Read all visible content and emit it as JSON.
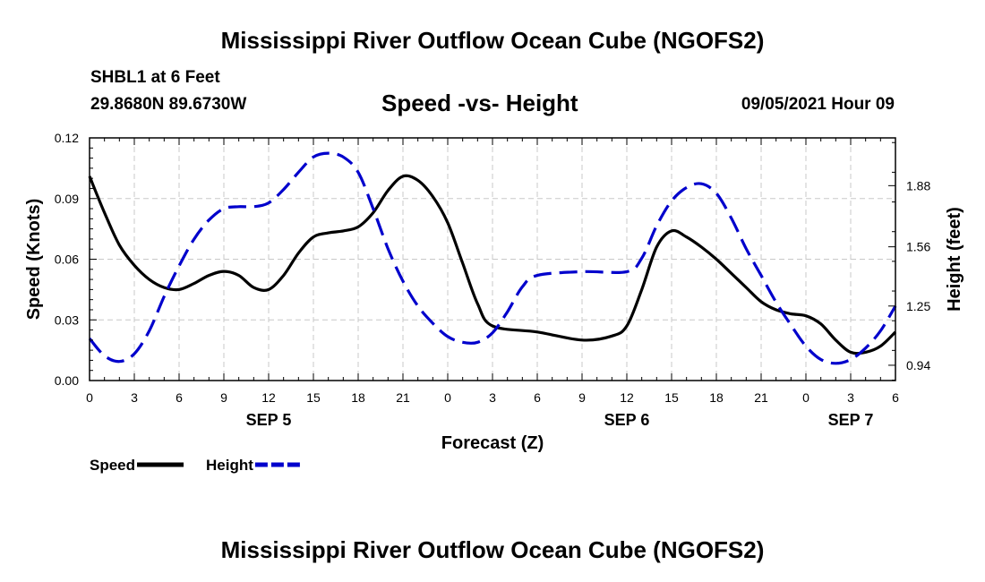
{
  "header": {
    "title": "Mississippi River Outflow Ocean Cube (NGOFS2)",
    "station": "SHBL1 at 6 Feet",
    "coordinates": "29.8680N  89.6730W",
    "datetime": "09/05/2021 Hour 09"
  },
  "footer": {
    "title": "Mississippi River Outflow Ocean Cube (NGOFS2)"
  },
  "chart_data": {
    "type": "line",
    "title": "Speed -vs- Height",
    "xlabel": "Forecast (Z)",
    "ylabel": "Speed (Knots)",
    "y2label": "Height (feet)",
    "grid": true,
    "x_unit": "forecast hour from SEP 5 00Z",
    "xlim": [
      0,
      54
    ],
    "ylim": [
      0,
      0.12
    ],
    "y2lim": [
      0.86,
      2.13
    ],
    "x_ticks": [
      {
        "x": 0,
        "label": "0"
      },
      {
        "x": 3,
        "label": "3"
      },
      {
        "x": 6,
        "label": "6"
      },
      {
        "x": 9,
        "label": "9"
      },
      {
        "x": 12,
        "label": "12"
      },
      {
        "x": 15,
        "label": "15"
      },
      {
        "x": 18,
        "label": "18"
      },
      {
        "x": 21,
        "label": "21"
      },
      {
        "x": 24,
        "label": "0"
      },
      {
        "x": 27,
        "label": "3"
      },
      {
        "x": 30,
        "label": "6"
      },
      {
        "x": 33,
        "label": "9"
      },
      {
        "x": 36,
        "label": "12"
      },
      {
        "x": 39,
        "label": "15"
      },
      {
        "x": 42,
        "label": "18"
      },
      {
        "x": 45,
        "label": "21"
      },
      {
        "x": 48,
        "label": "0"
      },
      {
        "x": 51,
        "label": "3"
      },
      {
        "x": 54,
        "label": "6"
      }
    ],
    "date_labels": [
      {
        "x": 12,
        "label": "SEP 5"
      },
      {
        "x": 36,
        "label": "SEP 6"
      },
      {
        "x": 51,
        "label": "SEP 7"
      }
    ],
    "y_ticks": [
      {
        "v": 0,
        "label": "0.00"
      },
      {
        "v": 0.03,
        "label": "0.03"
      },
      {
        "v": 0.06,
        "label": "0.06"
      },
      {
        "v": 0.09,
        "label": "0.09"
      },
      {
        "v": 0.12,
        "label": "0.12"
      }
    ],
    "y2_ticks": [
      {
        "v": 0.94,
        "label": "0.94"
      },
      {
        "v": 1.25,
        "label": "1.25"
      },
      {
        "v": 1.56,
        "label": "1.56"
      },
      {
        "v": 1.88,
        "label": "1.88"
      }
    ],
    "series": [
      {
        "name": "Speed",
        "axis": "left",
        "color": "#000000",
        "dash": "solid",
        "x": [
          0,
          1,
          2,
          3,
          4,
          5,
          6,
          7,
          8,
          9,
          10,
          11,
          12,
          13,
          14,
          15,
          16,
          17,
          18,
          19,
          20,
          21,
          22,
          23,
          24,
          25,
          26,
          27,
          30,
          33,
          35,
          36,
          37,
          38,
          39,
          40,
          41,
          42,
          43,
          44,
          45,
          46,
          47,
          48,
          49,
          50,
          51,
          52,
          53,
          54
        ],
        "values": [
          0.101,
          0.083,
          0.067,
          0.057,
          0.05,
          0.046,
          0.045,
          0.048,
          0.052,
          0.054,
          0.052,
          0.046,
          0.045,
          0.052,
          0.063,
          0.071,
          0.073,
          0.074,
          0.076,
          0.083,
          0.094,
          0.101,
          0.099,
          0.091,
          0.078,
          0.058,
          0.038,
          0.027,
          0.024,
          0.02,
          0.022,
          0.027,
          0.045,
          0.066,
          0.074,
          0.071,
          0.066,
          0.06,
          0.053,
          0.046,
          0.039,
          0.035,
          0.033,
          0.032,
          0.028,
          0.02,
          0.014,
          0.014,
          0.017,
          0.024
        ]
      },
      {
        "name": "Height",
        "axis": "right",
        "color": "#0000cc",
        "dash": "dashed",
        "x": [
          0,
          1,
          2,
          3,
          4,
          5,
          6,
          7,
          8,
          9,
          10,
          11,
          12,
          13,
          14,
          15,
          16,
          17,
          18,
          19,
          20,
          21,
          22,
          23,
          24,
          25,
          26,
          27,
          28,
          29,
          30,
          33,
          36,
          37,
          38,
          39,
          40,
          41,
          42,
          43,
          44,
          45,
          46,
          47,
          48,
          49,
          50,
          51,
          52,
          53,
          54
        ],
        "values": [
          1.08,
          0.99,
          0.96,
          1.0,
          1.12,
          1.3,
          1.46,
          1.6,
          1.7,
          1.76,
          1.77,
          1.77,
          1.79,
          1.86,
          1.95,
          2.03,
          2.05,
          2.03,
          1.95,
          1.76,
          1.55,
          1.38,
          1.25,
          1.16,
          1.09,
          1.06,
          1.06,
          1.11,
          1.22,
          1.35,
          1.41,
          1.43,
          1.43,
          1.5,
          1.67,
          1.8,
          1.87,
          1.89,
          1.84,
          1.71,
          1.55,
          1.41,
          1.27,
          1.15,
          1.04,
          0.97,
          0.95,
          0.97,
          1.03,
          1.12,
          1.25
        ]
      }
    ],
    "legend": {
      "position": "bottom-left",
      "items": [
        {
          "label": "Speed",
          "color": "#000000",
          "dash": "solid"
        },
        {
          "label": "Height",
          "color": "#0000cc",
          "dash": "dashed"
        }
      ]
    }
  }
}
